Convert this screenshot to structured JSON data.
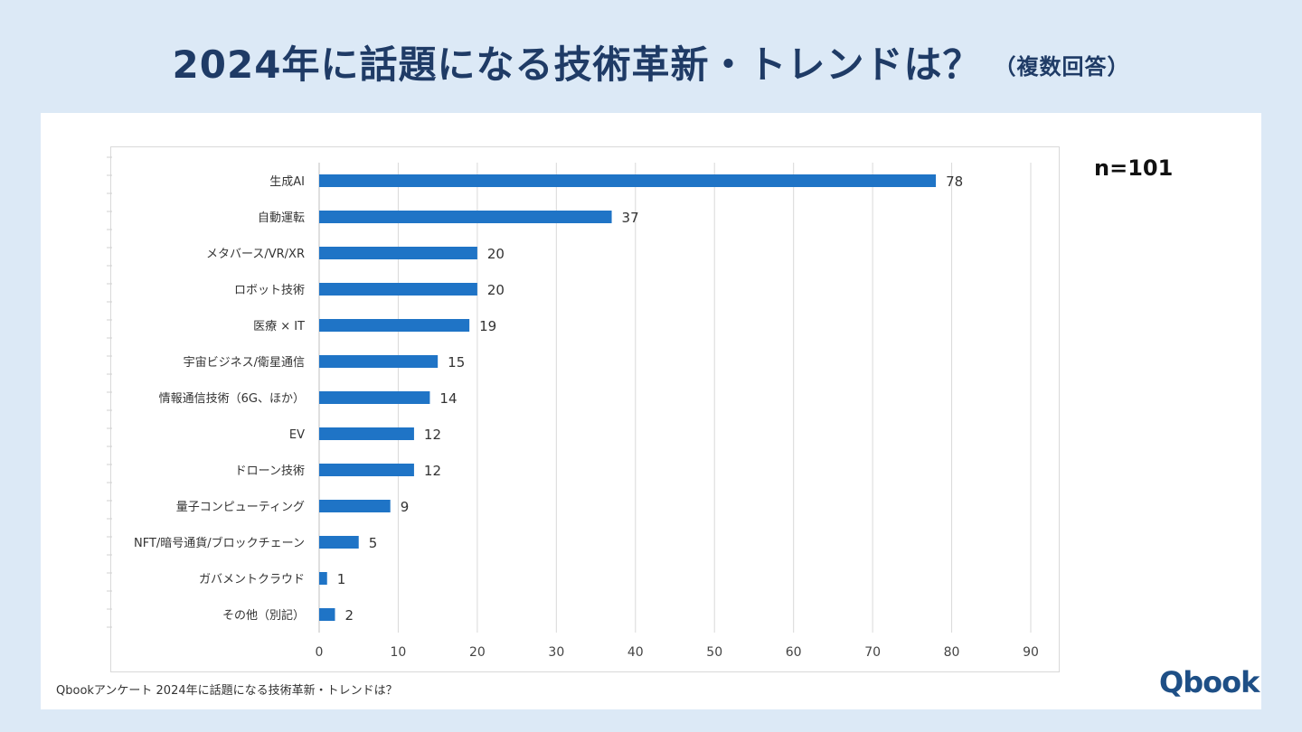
{
  "page": {
    "title": "2024年に話題になる技術革新・トレンドは？",
    "subtitle": "（複数回答）",
    "n_label": "n=101",
    "footnote": "Qbookアンケート 2024年に話題になる技術革新・トレンドは？",
    "logo_text": "Qbook"
  },
  "colors": {
    "background": "#dce9f6",
    "title": "#1f3b66",
    "bar": "#1f74c6",
    "grid": "#d9d9d9"
  },
  "chart_data": {
    "type": "bar",
    "orientation": "horizontal",
    "title": "2024年に話題になる技術革新・トレンドは？",
    "xlabel": "",
    "ylabel": "",
    "xlim": [
      0,
      90
    ],
    "xticks": [
      0,
      10,
      20,
      30,
      40,
      50,
      60,
      70,
      80,
      90
    ],
    "grid": true,
    "categories": [
      "生成AI",
      "自動運転",
      "メタバース/VR/XR",
      "ロボット技術",
      "医療 × IT",
      "宇宙ビジネス/衛星通信",
      "情報通信技術（6G、ほか）",
      "EV",
      "ドローン技術",
      "量子コンピューティング",
      "NFT/暗号通貨/ブロックチェーン",
      "ガバメントクラウド",
      "その他（別記）"
    ],
    "values": [
      78,
      37,
      20,
      20,
      19,
      15,
      14,
      12,
      12,
      9,
      5,
      1,
      2
    ]
  }
}
